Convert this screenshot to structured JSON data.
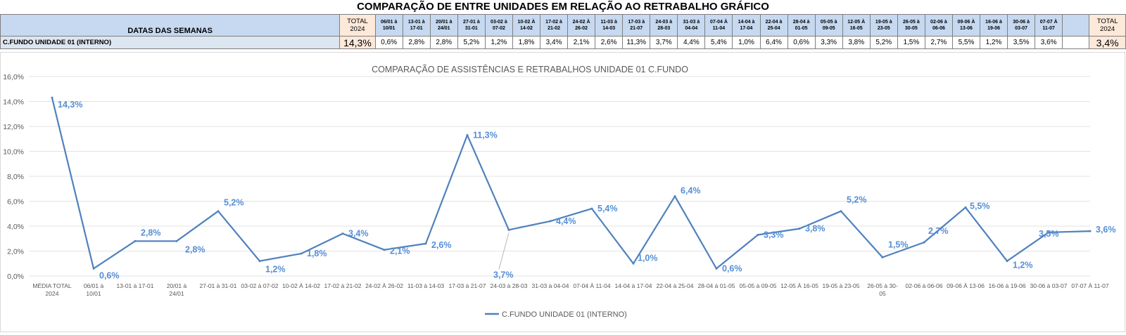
{
  "header": {
    "title": "COMPARAÇÃO DE ENTRE UNIDADES EM RELAÇÃO AO RETRABALHO GRÁFICO",
    "row_header_label": "DATAS DAS SEMANAS",
    "total_label_left": [
      "TOTAL",
      "2024"
    ],
    "total_label_right": [
      "TOTAL",
      "2024"
    ],
    "weeks": [
      [
        "06/01 à",
        "10/01"
      ],
      [
        "13-01 à",
        "17-01"
      ],
      [
        "20/01 à",
        "24/01"
      ],
      [
        "27-01 à",
        "31-01"
      ],
      [
        "03-02 à",
        "07-02"
      ],
      [
        "10-02 À",
        "14-02"
      ],
      [
        "17-02 à",
        "21-02"
      ],
      [
        "24-02 À",
        "26-02"
      ],
      [
        "11-03 à",
        "14-03"
      ],
      [
        "17-03 à",
        "21-07"
      ],
      [
        "24-03 à",
        "28-03"
      ],
      [
        "31-03 à",
        "04-04"
      ],
      [
        "07-04 À",
        "11-04"
      ],
      [
        "14-04 à",
        "17-04"
      ],
      [
        "22-04 à",
        "25-04"
      ],
      [
        "28-04 à",
        "01-05"
      ],
      [
        "05-05 à",
        "09-05"
      ],
      [
        "12-05 À",
        "16-05"
      ],
      [
        "19-05 à",
        "23-05"
      ],
      [
        "26-05 à",
        "30-05"
      ],
      [
        "02-06 à",
        "06-06"
      ],
      [
        "09-06 À",
        "13-06"
      ],
      [
        "16-06 à",
        "19-06"
      ],
      [
        "30-06 à",
        "03-07"
      ],
      [
        "07-07 À",
        "11-07"
      ]
    ]
  },
  "row": {
    "label": "C.FUNDO UNIDADE 01 (INTERNO)",
    "total_left": "14,3%",
    "values": [
      "0,6%",
      "2,8%",
      "2,8%",
      "5,2%",
      "1,2%",
      "1,8%",
      "3,4%",
      "2,1%",
      "2,6%",
      "11,3%",
      "3,7%",
      "4,4%",
      "5,4%",
      "1,0%",
      "6,4%",
      "0,6%",
      "3,3%",
      "3,8%",
      "5,2%",
      "1,5%",
      "2,7%",
      "5,5%",
      "1,2%",
      "3,5%",
      "3,6%"
    ],
    "total_right": "3,4%"
  },
  "colors": {
    "line": "#4f81bd",
    "label": "#558ed5",
    "header_fill": "#c6d9f1",
    "total_fill": "#fde9d9"
  },
  "chart_data": {
    "type": "line",
    "title": "COMPARAÇÃO DE ASSISTÊNCIAS E RETRABALHOS UNIDADE 01 C.FUNDO",
    "xlabel": "",
    "ylabel": "",
    "ylim": [
      0,
      16
    ],
    "yticks": [
      "0,0%",
      "2,0%",
      "4,0%",
      "6,0%",
      "8,0%",
      "10,0%",
      "12,0%",
      "14,0%",
      "16,0%"
    ],
    "grid": true,
    "legend": "bottom",
    "categories": [
      [
        "MÉDIA TOTAL",
        "2024"
      ],
      [
        "06/01 à",
        "10/01"
      ],
      [
        "13-01 à 17-01"
      ],
      [
        "20/01 à",
        "24/01"
      ],
      [
        "27-01 à 31-01"
      ],
      [
        "03-02 à 07-02"
      ],
      [
        "10-02 À 14-02"
      ],
      [
        "17-02 à 21-02"
      ],
      [
        "24-02 À 26-02"
      ],
      [
        "11-03 à 14-03"
      ],
      [
        "17-03 à 21-07"
      ],
      [
        "24-03 à 28-03"
      ],
      [
        "31-03 à 04-04"
      ],
      [
        "07-04 À 11-04"
      ],
      [
        "14-04 à 17-04"
      ],
      [
        "22-04 à 25-04"
      ],
      [
        "28-04 à 01-05"
      ],
      [
        "05-05 à 09-05"
      ],
      [
        "12-05 À 16-05"
      ],
      [
        "19-05 à 23-05"
      ],
      [
        "26-05  à 30-",
        "05"
      ],
      [
        "02-06 à 06-06"
      ],
      [
        "09-06 À 13-06"
      ],
      [
        "16-06 à 19-06"
      ],
      [
        "30-06 à 03-07"
      ],
      [
        "07-07 À 11-07"
      ]
    ],
    "series": [
      {
        "name": "C.FUNDO UNIDADE 01 (INTERNO)",
        "values": [
          14.3,
          0.6,
          2.8,
          2.8,
          5.2,
          1.2,
          1.8,
          3.4,
          2.1,
          2.6,
          11.3,
          3.7,
          4.4,
          5.4,
          1.0,
          6.4,
          0.6,
          3.3,
          3.8,
          5.2,
          1.5,
          2.7,
          5.5,
          1.2,
          3.5,
          3.6
        ],
        "labels": [
          "14,3%",
          "0,6%",
          "2,8%",
          "2,8%",
          "5,2%",
          "1,2%",
          "1,8%",
          "3,4%",
          "2,1%",
          "2,6%",
          "11,3%",
          "3,7%",
          "4,4%",
          "5,4%",
          "1,0%",
          "6,4%",
          "0,6%",
          "3,3%",
          "3,8%",
          "5,2%",
          "1,5%",
          "2,7%",
          "5,5%",
          "1,2%",
          "3,5%",
          "3,6%"
        ]
      }
    ]
  }
}
